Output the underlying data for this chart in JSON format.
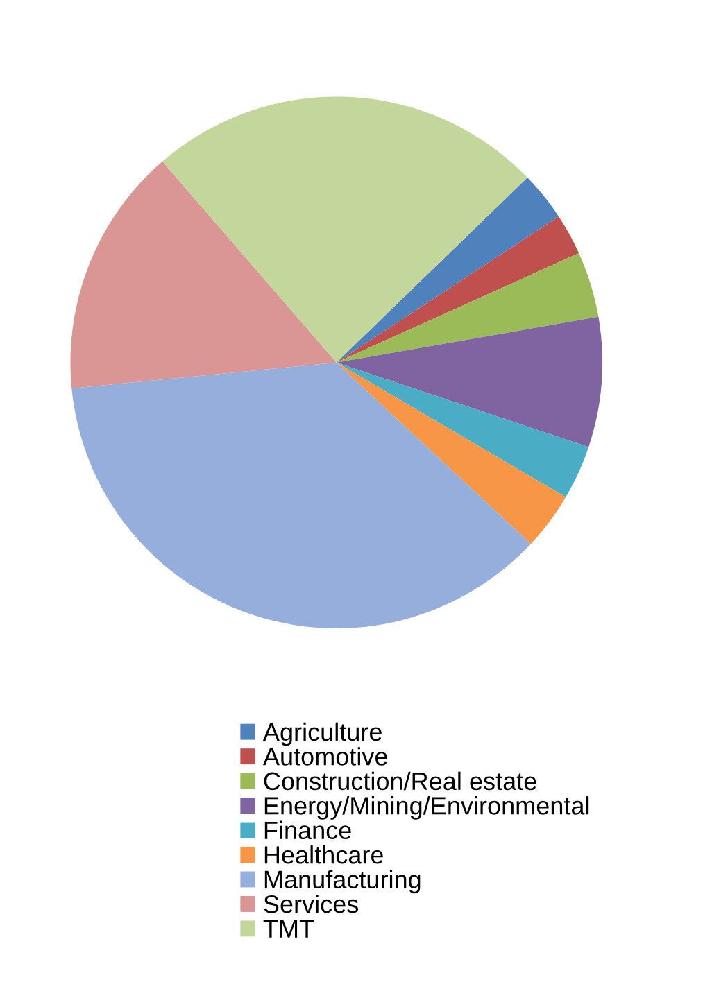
{
  "chart_data": {
    "type": "pie",
    "categories": [
      "Agriculture",
      "Automotive",
      "Construction/Real estate",
      "Energy/Mining/Environmental",
      "Finance",
      "Healthcare",
      "Manufacturing",
      "Services",
      "TMT"
    ],
    "values": [
      3.0,
      2.5,
      4.0,
      7.9,
      3.3,
      3.5,
      36.5,
      15.2,
      24.1
    ],
    "colors": [
      "#4f81bd",
      "#c0504d",
      "#9bbb59",
      "#8064a2",
      "#4bacc6",
      "#f79646",
      "#95aedb",
      "#d99694",
      "#c3d69b"
    ],
    "legend": "bottom"
  }
}
